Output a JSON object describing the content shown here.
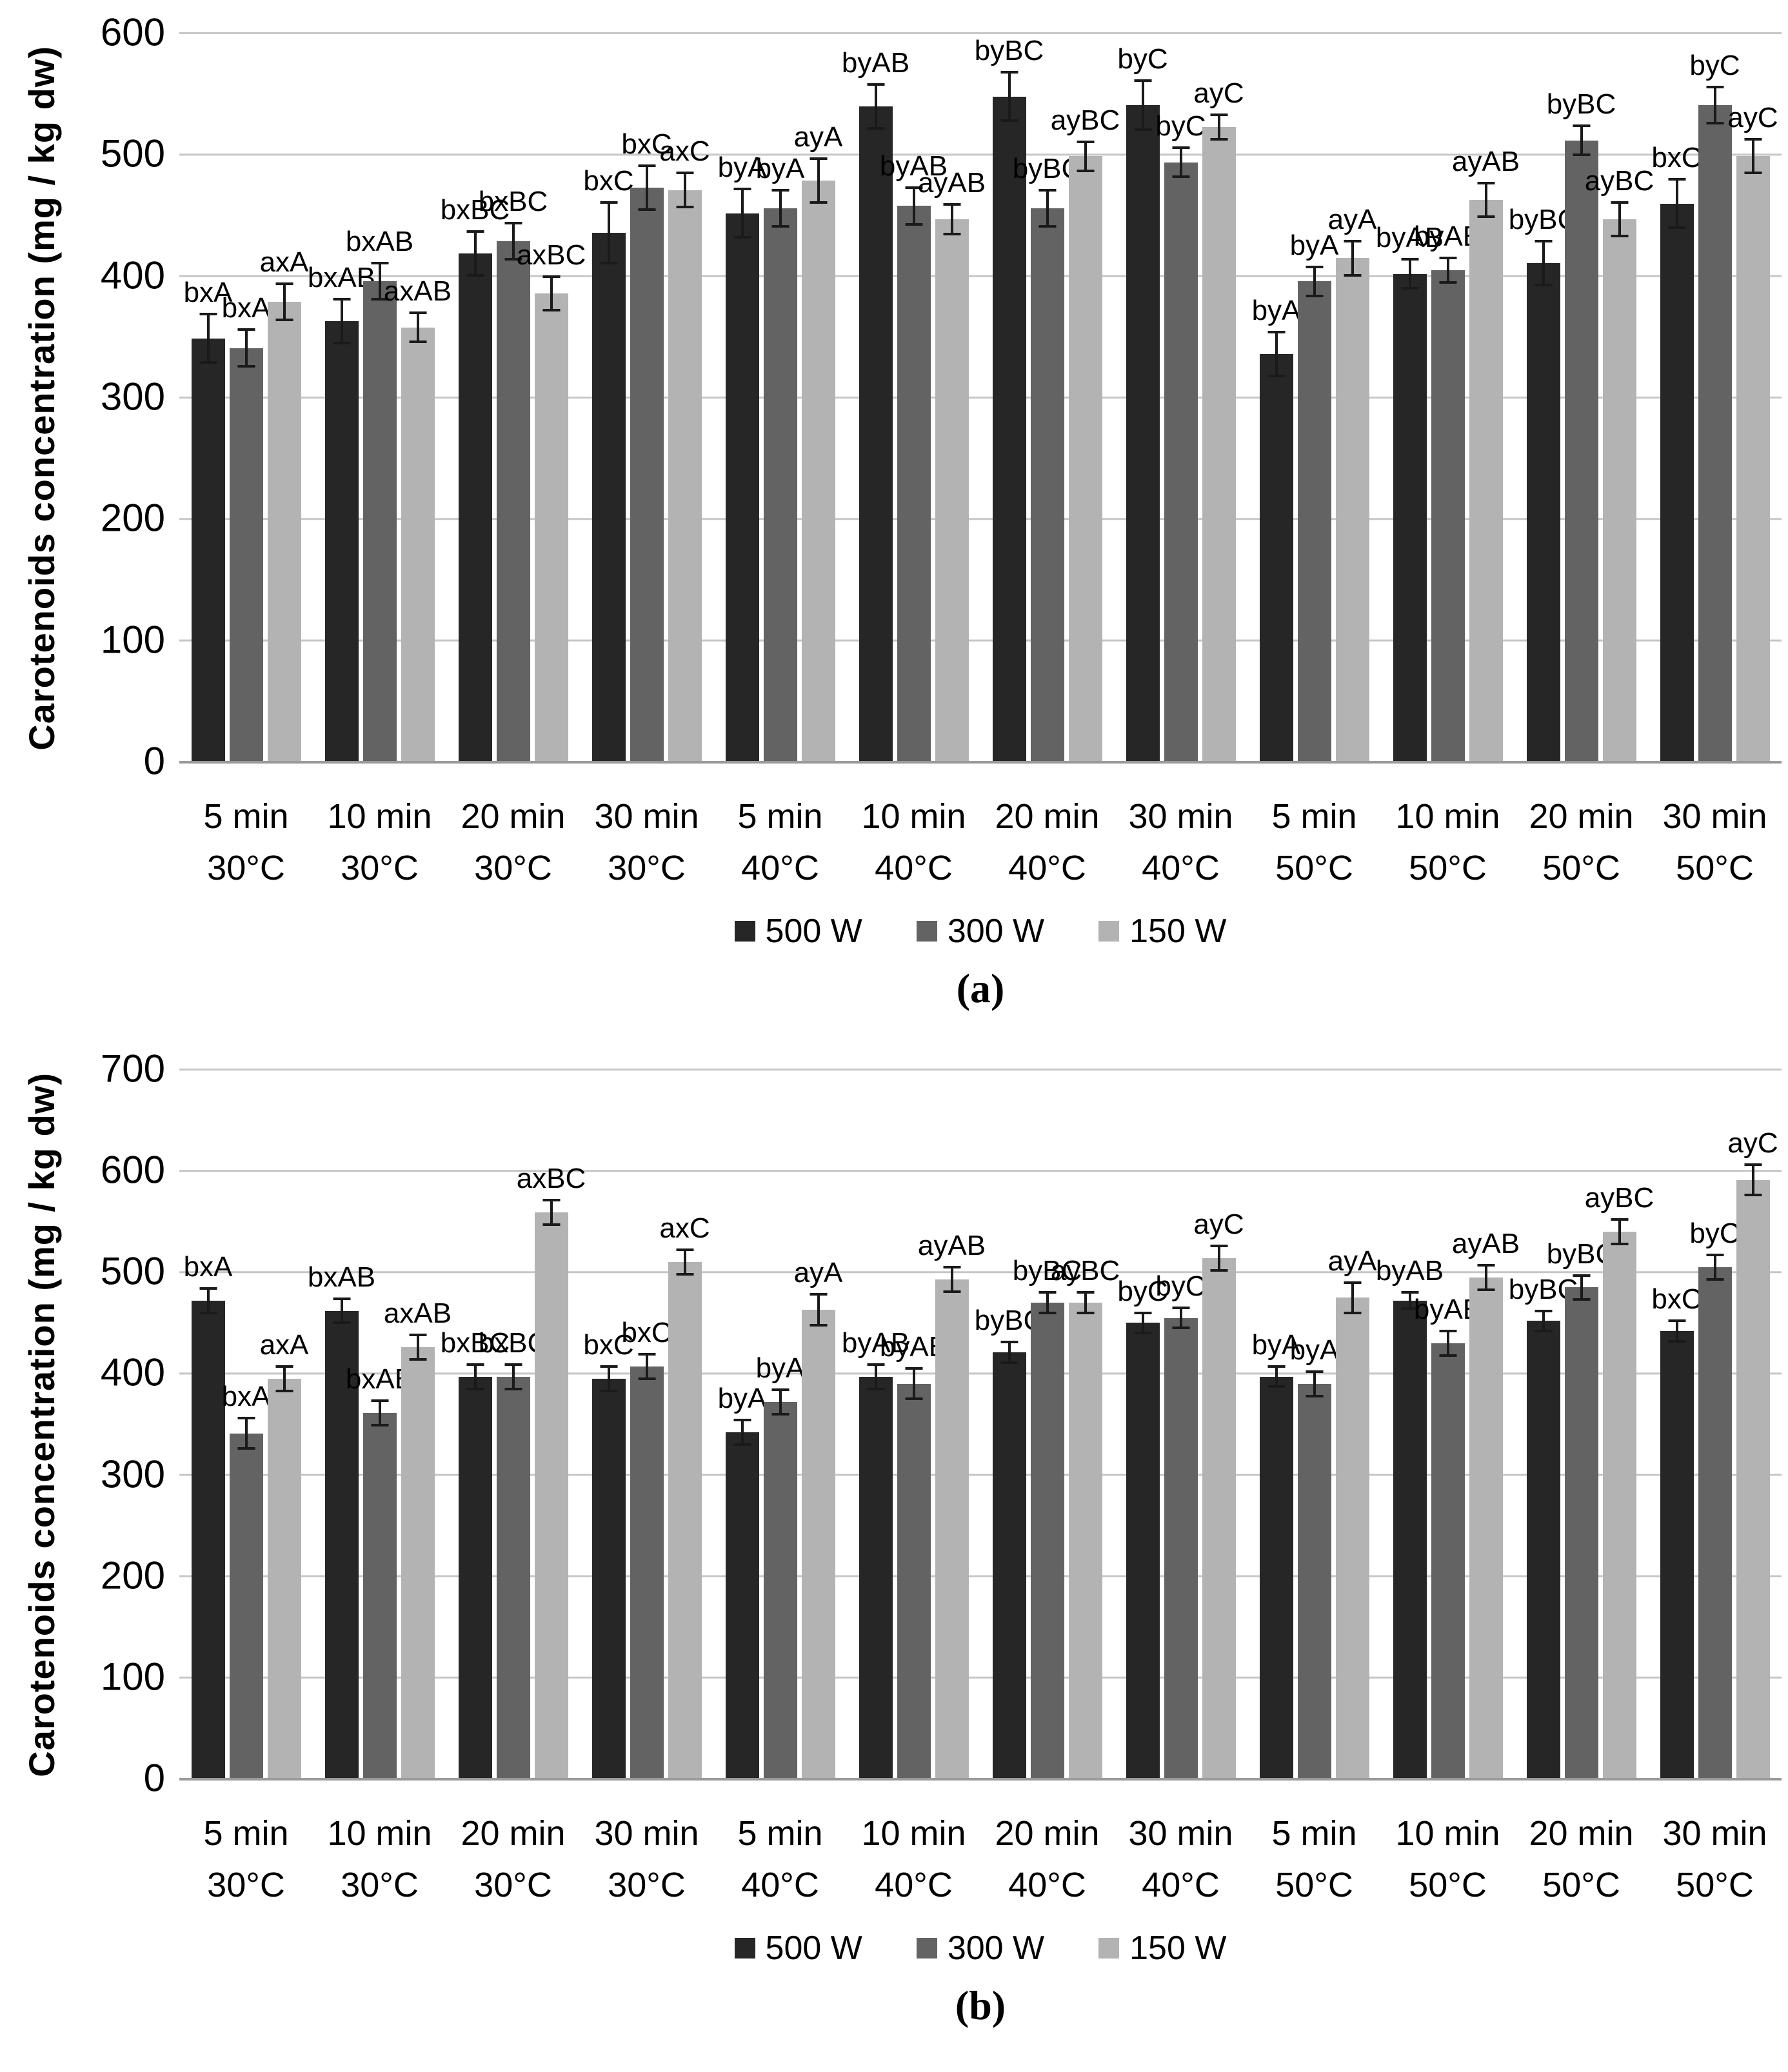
{
  "figure": {
    "background": "#ffffff",
    "gridline_color": "#c6c6c6",
    "axis_line_color": "#9a9a9a",
    "error_bar_color": "#1a1a1a"
  },
  "chart_data": [
    {
      "type": "bar",
      "panel_label": "(a)",
      "ylabel": "Carotenoids concentration (mg / kg dw)",
      "xlabel": "",
      "ylim": [
        0,
        600
      ],
      "ytick_step": 100,
      "grid": true,
      "legend_position": "bottom-center",
      "categories": [
        {
          "line1": "5 min",
          "line2": "30°C"
        },
        {
          "line1": "10 min",
          "line2": "30°C"
        },
        {
          "line1": "20 min",
          "line2": "30°C"
        },
        {
          "line1": "30 min",
          "line2": "30°C"
        },
        {
          "line1": "5 min",
          "line2": "40°C"
        },
        {
          "line1": "10 min",
          "line2": "40°C"
        },
        {
          "line1": "20 min",
          "line2": "40°C"
        },
        {
          "line1": "30 min",
          "line2": "40°C"
        },
        {
          "line1": "5 min",
          "line2": "50°C"
        },
        {
          "line1": "10 min",
          "line2": "50°C"
        },
        {
          "line1": "20 min",
          "line2": "50°C"
        },
        {
          "line1": "30 min",
          "line2": "50°C"
        }
      ],
      "series": [
        {
          "name": "500 W",
          "color": "#262626",
          "values": [
            348,
            362,
            418,
            435,
            451,
            539,
            547,
            540,
            335,
            401,
            410,
            459
          ],
          "errors": [
            20,
            18,
            18,
            25,
            20,
            18,
            20,
            20,
            18,
            12,
            18,
            20
          ],
          "labels": [
            "bxA",
            "bxAB",
            "bxBC",
            "bxC",
            "byA",
            "byAB",
            "byBC",
            "byC",
            "byA",
            "byAB",
            "byBC",
            "bxC"
          ]
        },
        {
          "name": "300 W",
          "color": "#636363",
          "values": [
            340,
            395,
            428,
            472,
            455,
            457,
            455,
            493,
            395,
            404,
            511,
            540
          ],
          "errors": [
            15,
            15,
            15,
            18,
            15,
            15,
            15,
            12,
            12,
            10,
            12,
            15
          ],
          "labels": [
            "bxA",
            "bxAB",
            "bxBC",
            "bxC",
            "byA",
            "byAB",
            "byBC",
            "byC",
            "byA",
            "byAB",
            "byBC",
            "byC"
          ]
        },
        {
          "name": "150 W",
          "color": "#b3b3b3",
          "values": [
            378,
            357,
            385,
            470,
            478,
            446,
            498,
            522,
            414,
            462,
            446,
            498
          ],
          "errors": [
            15,
            12,
            14,
            14,
            18,
            12,
            12,
            10,
            14,
            14,
            14,
            14
          ],
          "labels": [
            "axA",
            "axAB",
            "axBC",
            "axC",
            "ayA",
            "ayAB",
            "ayBC",
            "ayC",
            "ayA",
            "ayAB",
            "ayBC",
            "ayC"
          ]
        }
      ]
    },
    {
      "type": "bar",
      "panel_label": "(b)",
      "ylabel": "Carotenoids concentration (mg / kg dw)",
      "xlabel": "",
      "ylim": [
        0,
        700
      ],
      "ytick_step": 100,
      "grid": true,
      "legend_position": "bottom-center",
      "categories": [
        {
          "line1": "5 min",
          "line2": "30°C"
        },
        {
          "line1": "10 min",
          "line2": "30°C"
        },
        {
          "line1": "20 min",
          "line2": "30°C"
        },
        {
          "line1": "30 min",
          "line2": "30°C"
        },
        {
          "line1": "5 min",
          "line2": "40°C"
        },
        {
          "line1": "10 min",
          "line2": "40°C"
        },
        {
          "line1": "20 min",
          "line2": "40°C"
        },
        {
          "line1": "30 min",
          "line2": "40°C"
        },
        {
          "line1": "5 min",
          "line2": "50°C"
        },
        {
          "line1": "10 min",
          "line2": "50°C"
        },
        {
          "line1": "20 min",
          "line2": "50°C"
        },
        {
          "line1": "30 min",
          "line2": "50°C"
        }
      ],
      "series": [
        {
          "name": "500 W",
          "color": "#262626",
          "values": [
            471,
            461,
            396,
            394,
            341,
            396,
            420,
            449,
            396,
            471,
            451,
            441
          ],
          "errors": [
            12,
            12,
            12,
            12,
            12,
            12,
            10,
            10,
            10,
            8,
            10,
            10
          ],
          "labels": [
            "bxA",
            "bxAB",
            "bxBC",
            "bxC",
            "byA",
            "byAB",
            "byBC",
            "byC",
            "byA",
            "byAB",
            "byBC",
            "bxC"
          ]
        },
        {
          "name": "300 W",
          "color": "#636363",
          "values": [
            340,
            360,
            396,
            406,
            371,
            389,
            469,
            454,
            389,
            429,
            484,
            504
          ],
          "errors": [
            15,
            12,
            12,
            12,
            12,
            15,
            10,
            10,
            12,
            12,
            12,
            12
          ],
          "labels": [
            "bxA",
            "bxAB",
            "bxBC",
            "bxC",
            "byA",
            "byAB",
            "byBC",
            "byC",
            "byA",
            "byAB",
            "byBC",
            "byC"
          ]
        },
        {
          "name": "150 W",
          "color": "#b3b3b3",
          "values": [
            394,
            425,
            558,
            509,
            462,
            492,
            469,
            513,
            474,
            494,
            539,
            590
          ],
          "errors": [
            12,
            12,
            12,
            12,
            15,
            12,
            10,
            12,
            15,
            12,
            12,
            15
          ],
          "labels": [
            "axA",
            "axAB",
            "axBC",
            "axC",
            "ayA",
            "ayAB",
            "ayBC",
            "ayC",
            "ayA",
            "ayAB",
            "ayBC",
            "ayC"
          ]
        }
      ]
    }
  ]
}
